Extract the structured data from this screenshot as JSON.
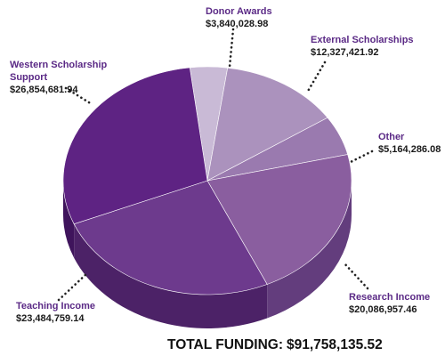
{
  "chart_data": {
    "type": "pie",
    "title": "",
    "slices": [
      {
        "label": "Donor Awards",
        "value_text": "$3,840,028.98",
        "value": 3840028.98,
        "color": "#c9bad6",
        "side": "#9e8db0"
      },
      {
        "label": "External Scholarships",
        "value_text": "$12,327,421.92",
        "value": 12327421.92,
        "color": "#ab92bd",
        "side": "#85699b"
      },
      {
        "label": "Other",
        "value_text": "$5,164,286.08",
        "value": 5164286.08,
        "color": "#9a7aaf",
        "side": "#735390"
      },
      {
        "label": "Research Income",
        "value_text": "$20,086,957.46",
        "value": 20086957.46,
        "color": "#8a5e9f",
        "side": "#633d7d"
      },
      {
        "label": "Teaching Income",
        "value_text": "$23,484,759.14",
        "value": 23484759.14,
        "color": "#6d3a8d",
        "side": "#4c2267"
      },
      {
        "label": "Western Scholarship Support",
        "label_lines": [
          "Western Scholarship",
          "Support"
        ],
        "value_text": "$26,854,681.94",
        "value": 26854681.94,
        "color": "#5e2383",
        "side": "#3f145c"
      }
    ],
    "total_label": "TOTAL FUNDING:",
    "total_value": "$91,758,135.52"
  }
}
